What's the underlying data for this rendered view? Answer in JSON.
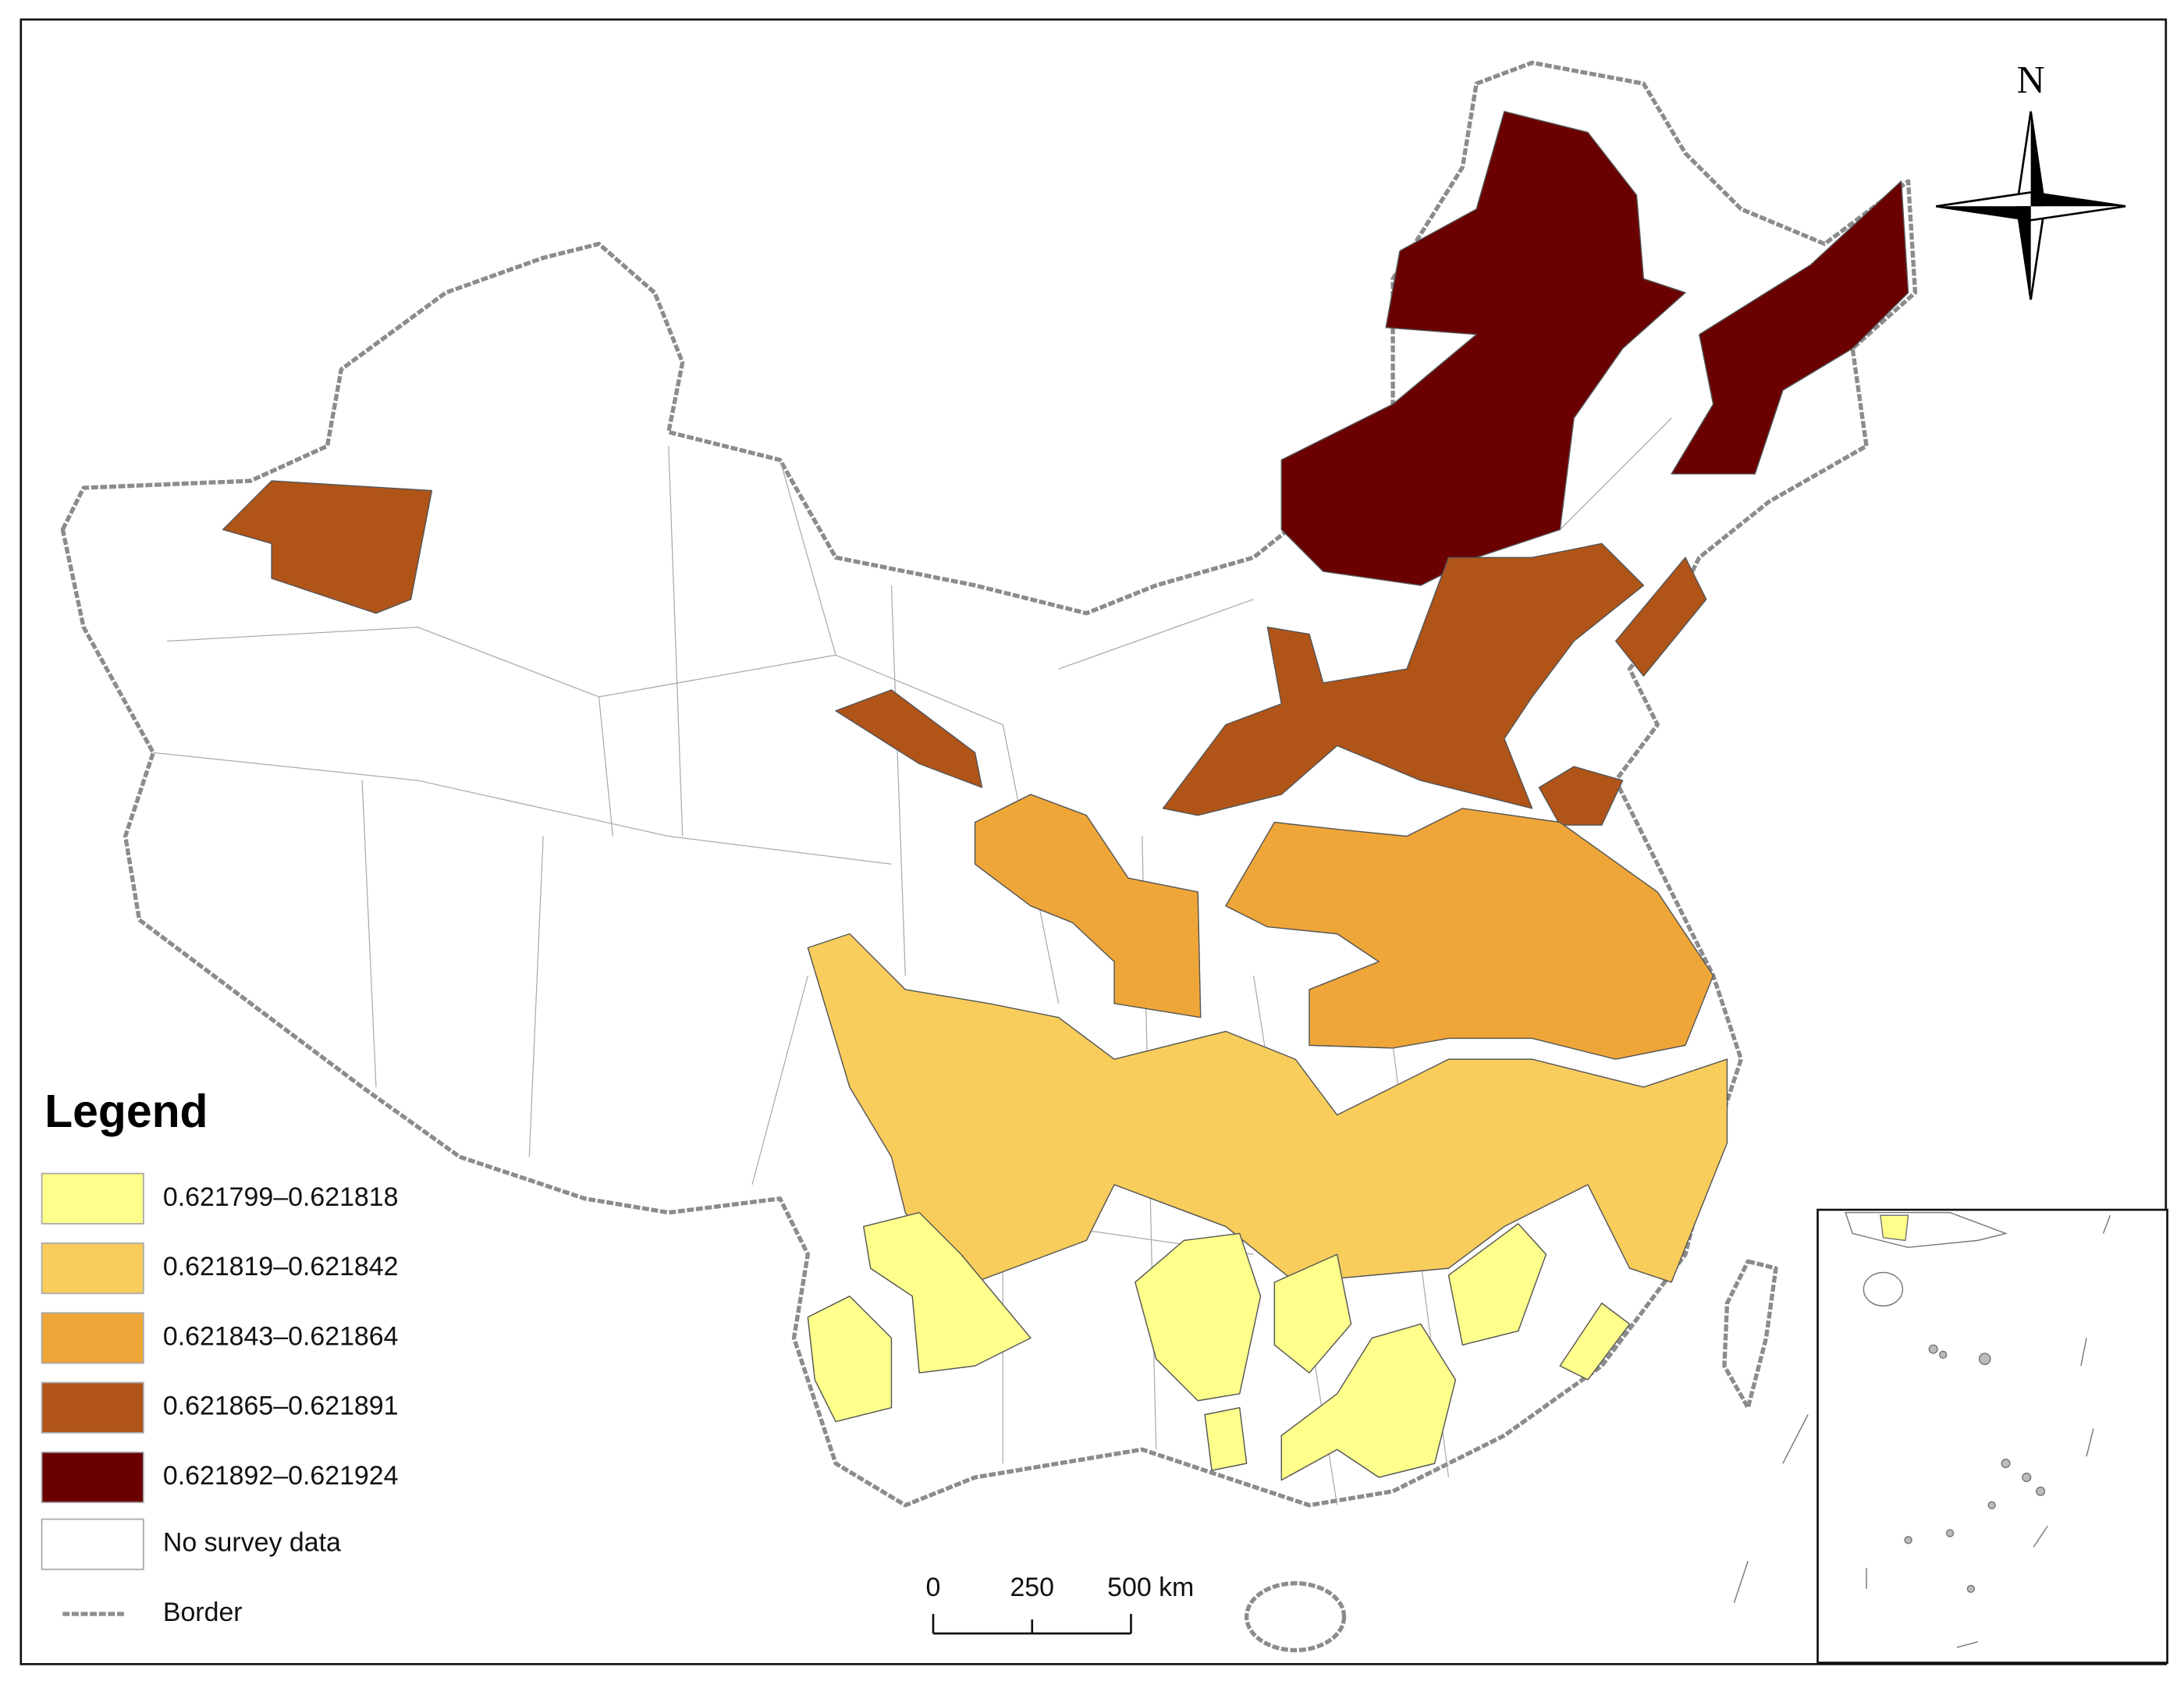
{
  "legend": {
    "title": "Legend",
    "classes": [
      {
        "label": "0.621799–0.621818",
        "color": "#ffff8c"
      },
      {
        "label": "0.621819–0.621842",
        "color": "#f8cd5c"
      },
      {
        "label": "0.621843–0.621864",
        "color": "#efa638"
      },
      {
        "label": "0.621865–0.621891",
        "color": "#b05418"
      },
      {
        "label": "0.621892–0.621924",
        "color": "#6a0000"
      }
    ],
    "no_data": {
      "label": "No survey data",
      "color": "#ffffff"
    },
    "border": {
      "label": "Border",
      "color": "#8c8c8c"
    }
  },
  "north_arrow": {
    "label": "N"
  },
  "scale_bar": {
    "labels": [
      "0",
      "250",
      "500 km"
    ]
  }
}
